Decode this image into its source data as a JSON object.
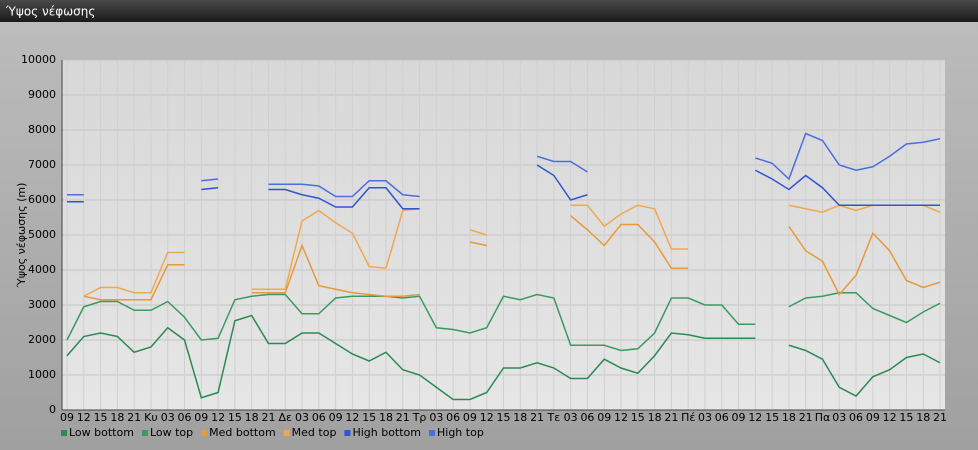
{
  "title": "Ύψος νέφωσης",
  "chart_data": {
    "type": "line",
    "y_label": "Ύψος νέφωσης (m)",
    "categories": [
      "09",
      "12",
      "15",
      "18",
      "21",
      "Κυ",
      "03",
      "06",
      "09",
      "12",
      "15",
      "18",
      "21",
      "Δε",
      "03",
      "06",
      "09",
      "12",
      "15",
      "18",
      "21",
      "Τρ",
      "03",
      "06",
      "09",
      "12",
      "15",
      "18",
      "21",
      "Τε",
      "03",
      "06",
      "09",
      "12",
      "15",
      "18",
      "21",
      "Πέ",
      "03",
      "06",
      "09",
      "12",
      "15",
      "18",
      "21",
      "Πα",
      "03",
      "06",
      "09",
      "12",
      "15",
      "18",
      "21"
    ],
    "series": [
      {
        "name": "Low bottom",
        "color": "#2b8a52",
        "values": [
          1550,
          2100,
          2200,
          2100,
          1650,
          1800,
          2350,
          2000,
          350,
          500,
          2550,
          2700,
          1900,
          1900,
          2200,
          2200,
          1900,
          1600,
          1400,
          1650,
          1150,
          1000,
          650,
          300,
          300,
          500,
          1200,
          1200,
          1350,
          1200,
          900,
          900,
          1450,
          1200,
          1050,
          1550,
          2200,
          2150,
          2050,
          2050,
          2050,
          2050,
          null,
          1850,
          1700,
          1450,
          650,
          400,
          950,
          1150,
          1500,
          1600,
          1350
        ]
      },
      {
        "name": "Low top",
        "color": "#3a9a60",
        "values": [
          2000,
          2950,
          3100,
          3100,
          2850,
          2850,
          3100,
          2650,
          2000,
          2050,
          3150,
          3250,
          3300,
          3300,
          2750,
          2750,
          3200,
          3250,
          3250,
          3250,
          3200,
          3250,
          2350,
          2300,
          2200,
          2350,
          3250,
          3150,
          3300,
          3200,
          1850,
          1850,
          1850,
          1700,
          1750,
          2200,
          3200,
          3200,
          3000,
          3000,
          2450,
          2450,
          null,
          2950,
          3200,
          3250,
          3350,
          3350,
          2900,
          2700,
          2500,
          2800,
          3050
        ]
      },
      {
        "name": "Med bottom",
        "color": "#e8993a",
        "values": [
          null,
          3250,
          3150,
          3150,
          3150,
          3150,
          4150,
          4150,
          null,
          null,
          null,
          3350,
          3350,
          3350,
          4700,
          3550,
          3450,
          3350,
          3300,
          3250,
          3250,
          3300,
          null,
          null,
          4800,
          4700,
          null,
          null,
          null,
          null,
          5550,
          5150,
          4700,
          5300,
          5300,
          4800,
          4050,
          4050,
          null,
          null,
          null,
          null,
          null,
          5250,
          4550,
          4250,
          3300,
          3850,
          5050,
          4550,
          3700,
          3500,
          3650
        ]
      },
      {
        "name": "Med top",
        "color": "#f0a850",
        "values": [
          null,
          3250,
          3500,
          3500,
          3350,
          3350,
          4500,
          4500,
          null,
          null,
          null,
          3450,
          3450,
          3450,
          5400,
          5700,
          5350,
          5050,
          4100,
          4050,
          5700,
          5750,
          null,
          null,
          5150,
          5000,
          null,
          null,
          null,
          null,
          5850,
          5850,
          5250,
          5600,
          5850,
          5750,
          4600,
          4600,
          null,
          null,
          null,
          null,
          null,
          5850,
          5750,
          5650,
          5850,
          5700,
          5850,
          5850,
          5850,
          5850,
          5650
        ]
      },
      {
        "name": "High bottom",
        "color": "#2f55d4",
        "values": [
          5950,
          5950,
          null,
          null,
          null,
          null,
          null,
          null,
          6300,
          6350,
          null,
          null,
          6300,
          6300,
          6150,
          6050,
          5800,
          5800,
          6350,
          6350,
          5750,
          5750,
          null,
          null,
          null,
          null,
          null,
          null,
          7000,
          6700,
          6000,
          6150,
          null,
          null,
          null,
          null,
          null,
          null,
          null,
          null,
          null,
          6850,
          6600,
          6300,
          6700,
          6350,
          5850,
          5850,
          5850,
          5850,
          5850,
          5850,
          5850
        ]
      },
      {
        "name": "High top",
        "color": "#4a6ee0",
        "values": [
          6150,
          6150,
          null,
          null,
          null,
          null,
          null,
          null,
          6550,
          6600,
          null,
          null,
          6450,
          6450,
          6450,
          6400,
          6100,
          6100,
          6550,
          6550,
          6150,
          6100,
          null,
          null,
          null,
          null,
          null,
          null,
          7250,
          7100,
          7100,
          6800,
          null,
          null,
          null,
          null,
          null,
          null,
          null,
          null,
          null,
          7200,
          7050,
          6600,
          7900,
          7700,
          7000,
          6850,
          6950,
          7250,
          7600,
          7650,
          7750
        ]
      }
    ],
    "ylim": [
      0,
      10000
    ],
    "yticks": [
      0,
      1000,
      2000,
      3000,
      4000,
      5000,
      6000,
      7000,
      8000,
      9000,
      10000
    ],
    "grid": true
  }
}
